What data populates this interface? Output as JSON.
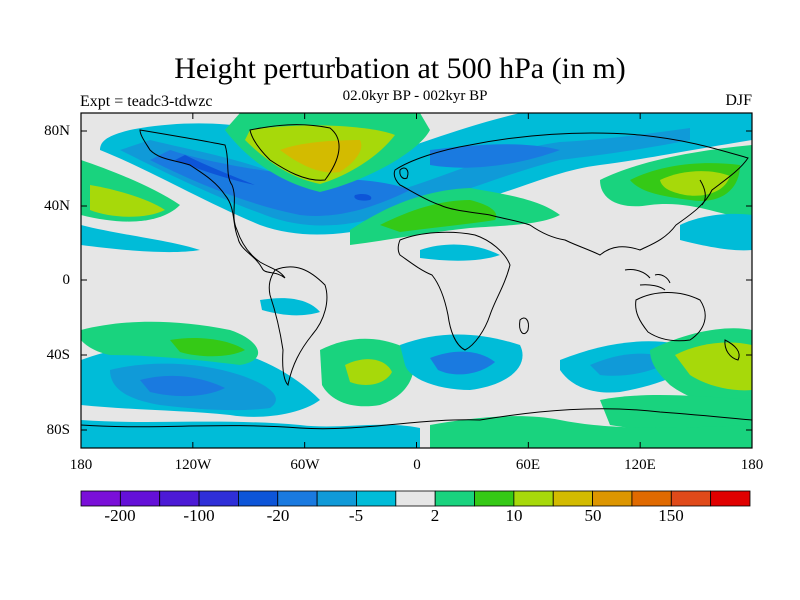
{
  "title": "Height perturbation at 500 hPa (in m)",
  "experiment": "Expt = teadc3-tdwzc",
  "period": "02.0kyr BP - 002kyr BP",
  "season": "DJF",
  "map": {
    "lon_range": [
      -180,
      180
    ],
    "lat_range": [
      -90,
      90
    ],
    "x_tick_labels": [
      "180",
      "120W",
      "60W",
      "0",
      "60E",
      "120E",
      "180"
    ],
    "y_tick_labels": [
      "80N",
      "40N",
      "0",
      "40S",
      "80S"
    ],
    "background_color": "#e6e6e6"
  },
  "colorbar": {
    "colors": [
      "#7a0fd8",
      "#6410d8",
      "#4c1ad6",
      "#2f2fd8",
      "#0d55d8",
      "#1a7ae0",
      "#109ad8",
      "#00bcd8",
      "#e6e6e6",
      "#19d37e",
      "#35c916",
      "#a7d90a",
      "#d3bb00",
      "#dd9600",
      "#e06a00",
      "#e04a1a",
      "#e00000"
    ],
    "tick_labels": [
      "-200",
      "-100",
      "-20",
      "-5",
      "2",
      "10",
      "50",
      "150"
    ]
  }
}
